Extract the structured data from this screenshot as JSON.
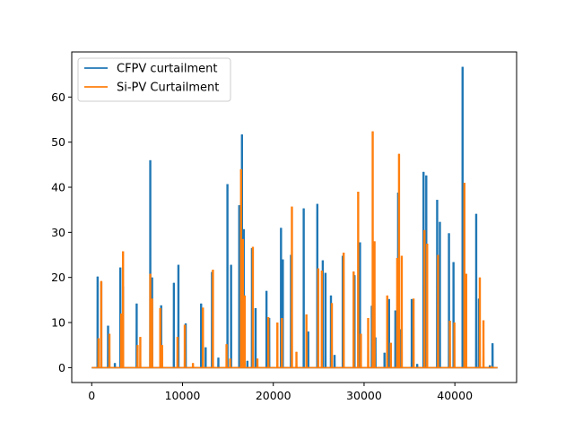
{
  "chart_data": {
    "type": "line",
    "title": "",
    "xlabel": "",
    "ylabel": "",
    "xlim": [
      -2200,
      46800
    ],
    "ylim": [
      -3.3,
      70
    ],
    "xticks": [
      0,
      10000,
      20000,
      30000,
      40000
    ],
    "yticks": [
      0,
      10,
      20,
      30,
      40,
      50,
      60
    ],
    "grid": false,
    "legend_position": "upper-left",
    "x_baseline_range": [
      0,
      44700
    ],
    "series": [
      {
        "name": "CFPV curtailment",
        "color": "#1f77b4",
        "spikes": [
          [
            650,
            20.2
          ],
          [
            1050,
            19.0
          ],
          [
            1800,
            9.3
          ],
          [
            2550,
            1.0
          ],
          [
            3150,
            22.2
          ],
          [
            3450,
            18.0
          ],
          [
            4950,
            14.2
          ],
          [
            6450,
            46.0
          ],
          [
            6650,
            20.0
          ],
          [
            7650,
            13.8
          ],
          [
            9050,
            18.8
          ],
          [
            9550,
            22.8
          ],
          [
            10350,
            9.8
          ],
          [
            12050,
            14.2
          ],
          [
            12550,
            4.5
          ],
          [
            13250,
            21.2
          ],
          [
            13950,
            2.2
          ],
          [
            14950,
            40.7
          ],
          [
            15350,
            22.8
          ],
          [
            16250,
            36.0
          ],
          [
            16550,
            51.7
          ],
          [
            16750,
            30.7
          ],
          [
            17150,
            1.5
          ],
          [
            17650,
            26.5
          ],
          [
            18050,
            13.2
          ],
          [
            19250,
            17.0
          ],
          [
            19550,
            11.0
          ],
          [
            20850,
            31.0
          ],
          [
            21050,
            24.0
          ],
          [
            21950,
            25.0
          ],
          [
            23350,
            35.3
          ],
          [
            23850,
            8.0
          ],
          [
            24850,
            36.3
          ],
          [
            25450,
            23.8
          ],
          [
            25750,
            21.0
          ],
          [
            26350,
            16.0
          ],
          [
            26750,
            2.8
          ],
          [
            27650,
            24.8
          ],
          [
            28950,
            20.5
          ],
          [
            29550,
            27.8
          ],
          [
            30850,
            13.7
          ],
          [
            31250,
            6.7
          ],
          [
            32250,
            3.3
          ],
          [
            32750,
            15.2
          ],
          [
            33450,
            12.7
          ],
          [
            33750,
            38.8
          ],
          [
            34050,
            8.5
          ],
          [
            35250,
            15.2
          ],
          [
            35850,
            0.8
          ],
          [
            36550,
            43.4
          ],
          [
            36850,
            42.6
          ],
          [
            38050,
            37.2
          ],
          [
            38350,
            32.3
          ],
          [
            39350,
            29.8
          ],
          [
            39850,
            23.4
          ],
          [
            40850,
            66.7
          ],
          [
            41150,
            2.0
          ],
          [
            42350,
            34.1
          ],
          [
            42650,
            15.3
          ],
          [
            43850,
            0.5
          ],
          [
            44150,
            5.4
          ]
        ]
      },
      {
        "name": "Si-PV Curtailment",
        "color": "#ff7f0e",
        "spikes": [
          [
            750,
            6.5
          ],
          [
            1050,
            19.2
          ],
          [
            1950,
            7.5
          ],
          [
            3250,
            12.0
          ],
          [
            3450,
            25.8
          ],
          [
            5050,
            5.0
          ],
          [
            5350,
            6.8
          ],
          [
            6450,
            20.8
          ],
          [
            6650,
            15.3
          ],
          [
            7750,
            5.0
          ],
          [
            7550,
            13.2
          ],
          [
            9450,
            6.8
          ],
          [
            10250,
            9.5
          ],
          [
            11150,
            1.0
          ],
          [
            12250,
            13.3
          ],
          [
            13350,
            21.7
          ],
          [
            14850,
            5.2
          ],
          [
            15250,
            2.0
          ],
          [
            16450,
            44.0
          ],
          [
            16650,
            28.5
          ],
          [
            16850,
            16.0
          ],
          [
            17750,
            26.8
          ],
          [
            18250,
            2.0
          ],
          [
            19450,
            11.2
          ],
          [
            20450,
            10.0
          ],
          [
            20950,
            11.0
          ],
          [
            22050,
            35.7
          ],
          [
            22550,
            3.5
          ],
          [
            23650,
            11.8
          ],
          [
            24950,
            22.0
          ],
          [
            25350,
            21.5
          ],
          [
            26450,
            14.3
          ],
          [
            27750,
            25.5
          ],
          [
            28850,
            21.3
          ],
          [
            29350,
            39.0
          ],
          [
            29650,
            7.5
          ],
          [
            30450,
            11.0
          ],
          [
            30950,
            52.4
          ],
          [
            31150,
            28.0
          ],
          [
            32550,
            16.0
          ],
          [
            32950,
            5.5
          ],
          [
            33650,
            24.3
          ],
          [
            33850,
            47.4
          ],
          [
            34150,
            24.8
          ],
          [
            35450,
            15.3
          ],
          [
            36650,
            30.5
          ],
          [
            36950,
            27.5
          ],
          [
            38150,
            25.0
          ],
          [
            39450,
            10.4
          ],
          [
            39950,
            10.0
          ],
          [
            41050,
            41.0
          ],
          [
            41250,
            20.8
          ],
          [
            42750,
            20.0
          ],
          [
            43150,
            10.5
          ],
          [
            44050,
            0.3
          ]
        ]
      }
    ]
  }
}
